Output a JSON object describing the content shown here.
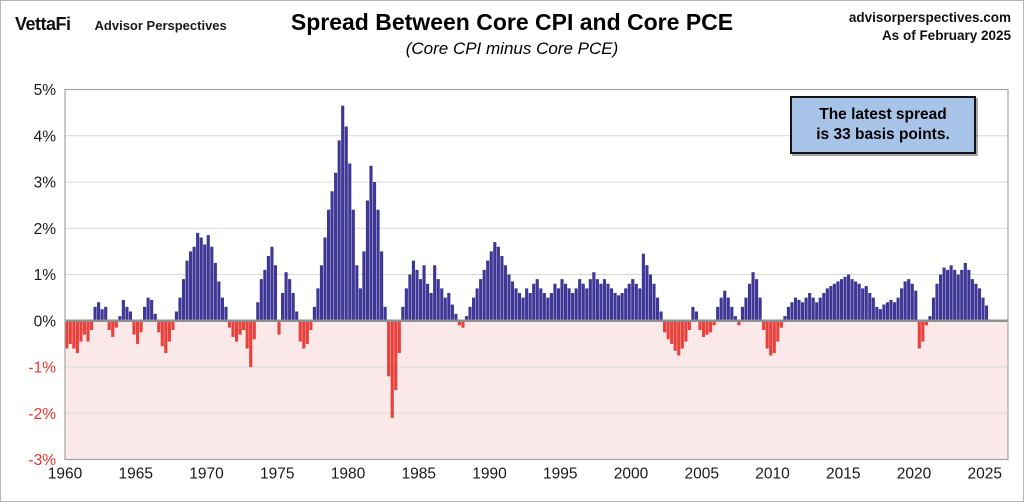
{
  "header": {
    "logo": "VettaFi",
    "logo_sub": "Advisor Perspectives",
    "title": "Spread Between Core CPI and Core PCE",
    "subtitle": "(Core CPI minus Core PCE)",
    "source_line1": "advisorperspectives.com",
    "source_line2": "As of February 2025"
  },
  "annotation": {
    "line1": "The latest spread",
    "line2": "is 33 basis points."
  },
  "chart_data": {
    "type": "bar",
    "title": "Spread Between Core CPI and Core PCE",
    "subtitle": "(Core CPI minus Core PCE)",
    "series_name": "Core CPI minus Core PCE (percentage points, monthly)",
    "x_start_year": 1960,
    "x_end_label": "February 2025",
    "period_years": 0.25,
    "unit": "percent",
    "ylim": [
      -3,
      5
    ],
    "xlim": [
      1960,
      2026
    ],
    "y_ticks": [
      5,
      4,
      3,
      2,
      1,
      0,
      -1,
      -2,
      -3
    ],
    "x_ticks": [
      1960,
      1965,
      1970,
      1975,
      1980,
      1985,
      1990,
      1995,
      2000,
      2005,
      2010,
      2015,
      2020,
      2025
    ],
    "grid": true,
    "legend": false,
    "latest_value": 0.33,
    "latest_note": "The latest spread is 33 basis points.",
    "positive_color": "#3f3795",
    "negative_color": "#e8413c",
    "negative_region_fill": "#fbe9ea",
    "grid_color": "#d9d9d9",
    "zero_line_color": "#8f8f8f",
    "border_color": "#a3a3a3",
    "neg_label_color": "#ee3030",
    "pos_label_color": "#1a1a1a",
    "values": [
      -0.6,
      -0.5,
      -0.6,
      -0.7,
      -0.45,
      -0.3,
      -0.45,
      -0.2,
      0.3,
      0.4,
      0.25,
      0.3,
      -0.2,
      -0.35,
      -0.15,
      0.1,
      0.45,
      0.3,
      0.2,
      -0.3,
      -0.5,
      -0.25,
      0.3,
      0.5,
      0.45,
      0.15,
      -0.25,
      -0.55,
      -0.7,
      -0.45,
      -0.2,
      0.2,
      0.5,
      0.9,
      1.3,
      1.5,
      1.6,
      1.9,
      1.8,
      1.65,
      1.85,
      1.6,
      1.25,
      0.85,
      0.5,
      0.3,
      -0.15,
      -0.35,
      -0.45,
      -0.3,
      -0.2,
      -0.6,
      -1,
      -0.4,
      0.4,
      0.9,
      1.1,
      1.4,
      1.6,
      1.2,
      -0.3,
      0.6,
      1.05,
      0.9,
      0.6,
      0.2,
      -0.45,
      -0.6,
      -0.5,
      -0.2,
      0.3,
      0.7,
      1.2,
      1.8,
      2.4,
      2.8,
      3.2,
      3.9,
      4.65,
      4.2,
      3.4,
      2.4,
      1.2,
      0.7,
      1.5,
      2.6,
      3.35,
      3,
      2.4,
      1.5,
      0.3,
      -1.2,
      -2.1,
      -1.5,
      -0.7,
      0.3,
      0.7,
      1,
      1.3,
      1.1,
      0.9,
      1.2,
      0.8,
      0.6,
      1.2,
      0.9,
      0.7,
      0.5,
      0.6,
      0.35,
      0.15,
      -0.1,
      -0.15,
      0.1,
      0.3,
      0.5,
      0.7,
      0.9,
      1.1,
      1.3,
      1.5,
      1.7,
      1.6,
      1.4,
      1.2,
      1,
      0.85,
      0.7,
      0.6,
      0.5,
      0.7,
      0.6,
      0.8,
      0.9,
      0.7,
      0.6,
      0.5,
      0.6,
      0.8,
      0.7,
      0.9,
      0.8,
      0.7,
      0.6,
      0.7,
      0.9,
      0.8,
      0.7,
      0.9,
      1.05,
      0.9,
      0.8,
      0.9,
      0.8,
      0.7,
      0.6,
      0.55,
      0.6,
      0.7,
      0.8,
      0.9,
      0.8,
      0.7,
      1.45,
      1.2,
      1,
      0.8,
      0.5,
      0.2,
      -0.25,
      -0.4,
      -0.5,
      -0.65,
      -0.75,
      -0.6,
      -0.45,
      -0.2,
      0.3,
      0.2,
      -0.2,
      -0.35,
      -0.3,
      -0.25,
      -0.1,
      0.3,
      0.5,
      0.65,
      0.5,
      0.3,
      0.1,
      -0.1,
      0.3,
      0.5,
      0.8,
      1.05,
      0.9,
      0.5,
      -0.2,
      -0.6,
      -0.75,
      -0.7,
      -0.45,
      -0.15,
      0.1,
      0.3,
      0.4,
      0.5,
      0.45,
      0.4,
      0.5,
      0.6,
      0.5,
      0.4,
      0.5,
      0.6,
      0.7,
      0.75,
      0.8,
      0.85,
      0.9,
      0.95,
      1,
      0.9,
      0.85,
      0.8,
      0.7,
      0.75,
      0.6,
      0.5,
      0.3,
      0.25,
      0.35,
      0.4,
      0.45,
      0.4,
      0.5,
      0.7,
      0.85,
      0.9,
      0.8,
      0.65,
      -0.6,
      -0.45,
      -0.1,
      0.1,
      0.5,
      0.8,
      1,
      1.15,
      1.1,
      1.2,
      1.1,
      1,
      1.1,
      1.25,
      1.1,
      0.9,
      0.8,
      0.7,
      0.5,
      0.33
    ]
  }
}
